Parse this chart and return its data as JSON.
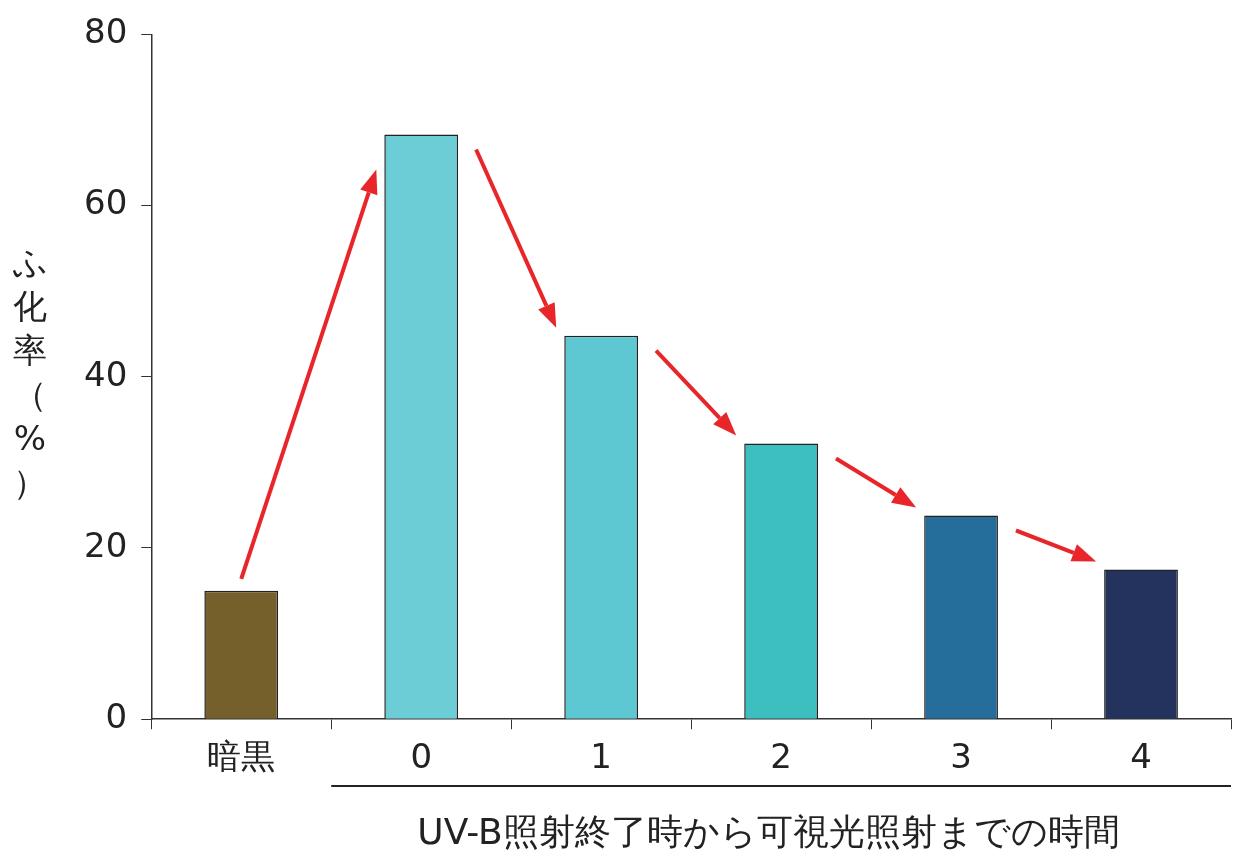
{
  "chart_data": {
    "type": "bar",
    "xlabel": "UV-B照射終了時から可視光照射までの時間",
    "ylabel": "ふ化率（%）",
    "categories": [
      "暗黒",
      "0",
      "1",
      "2",
      "3",
      "4"
    ],
    "values": [
      15.0,
      68.3,
      44.8,
      32.2,
      23.8,
      17.5
    ],
    "colors": [
      "#75602b",
      "#6ccdd6",
      "#5ec8d2",
      "#3dbfbf",
      "#256d9a",
      "#24335e"
    ],
    "ylim": [
      0,
      80
    ],
    "yticks": [
      0,
      20,
      40,
      60,
      80
    ],
    "grid": false,
    "legend": false
  }
}
